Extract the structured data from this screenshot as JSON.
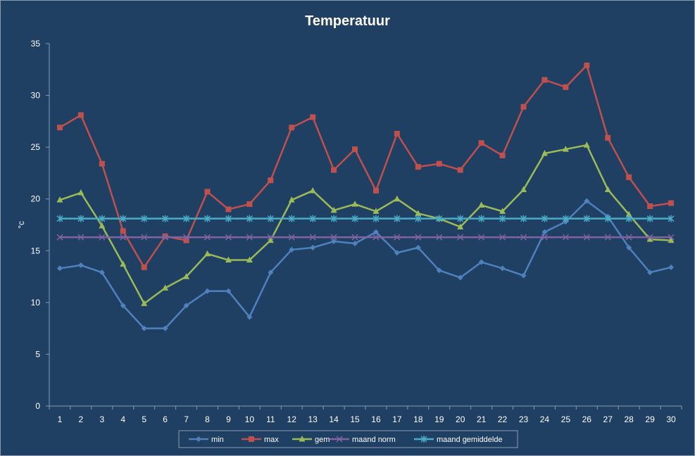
{
  "chart_data": {
    "type": "line",
    "title": "Temperatuur",
    "xlabel": "",
    "ylabel": "°c",
    "ylim": [
      0,
      35
    ],
    "yticks": [
      0,
      5,
      10,
      15,
      20,
      25,
      30,
      35
    ],
    "categories": [
      "1",
      "2",
      "3",
      "4",
      "5",
      "6",
      "7",
      "8",
      "9",
      "10",
      "11",
      "12",
      "13",
      "14",
      "15",
      "16",
      "17",
      "18",
      "19",
      "20",
      "21",
      "22",
      "23",
      "24",
      "25",
      "26",
      "27",
      "28",
      "29",
      "30"
    ],
    "grid": false,
    "legend_position": "bottom",
    "series": [
      {
        "name": "min",
        "color": "#4f81bd",
        "marker": "diamond",
        "values": [
          13.3,
          13.6,
          12.9,
          9.7,
          7.5,
          7.5,
          9.7,
          11.1,
          11.1,
          8.6,
          12.9,
          15.1,
          15.3,
          15.9,
          15.7,
          16.8,
          14.8,
          15.3,
          13.1,
          12.4,
          13.9,
          13.3,
          12.6,
          16.8,
          17.8,
          19.8,
          18.3,
          15.3,
          12.9,
          13.4
        ]
      },
      {
        "name": "max",
        "color": "#c0504d",
        "marker": "square",
        "values": [
          26.9,
          28.1,
          23.4,
          16.9,
          13.4,
          16.4,
          16.0,
          20.7,
          19.0,
          19.5,
          21.8,
          26.9,
          27.9,
          22.8,
          24.8,
          20.8,
          26.3,
          23.1,
          23.4,
          22.8,
          25.4,
          24.2,
          28.9,
          31.5,
          30.8,
          32.9,
          25.9,
          22.1,
          19.3,
          19.6
        ]
      },
      {
        "name": "gem",
        "color": "#9bbb59",
        "marker": "triangle",
        "values": [
          19.9,
          20.6,
          17.4,
          13.7,
          9.9,
          11.4,
          12.5,
          14.7,
          14.1,
          14.1,
          16.0,
          19.9,
          20.8,
          18.9,
          19.5,
          18.8,
          20.0,
          18.6,
          18.1,
          17.3,
          19.4,
          18.8,
          20.9,
          24.4,
          24.8,
          25.2,
          20.9,
          18.5,
          16.1,
          16.0
        ]
      },
      {
        "name": "maand norm",
        "color": "#8064a2",
        "marker": "x",
        "values": [
          16.3,
          16.3,
          16.3,
          16.3,
          16.3,
          16.3,
          16.3,
          16.3,
          16.3,
          16.3,
          16.3,
          16.3,
          16.3,
          16.3,
          16.3,
          16.3,
          16.3,
          16.3,
          16.3,
          16.3,
          16.3,
          16.3,
          16.3,
          16.3,
          16.3,
          16.3,
          16.3,
          16.3,
          16.3,
          16.3
        ]
      },
      {
        "name": "maand gemiddelde",
        "color": "#4bacc6",
        "marker": "star",
        "values": [
          18.1,
          18.1,
          18.1,
          18.1,
          18.1,
          18.1,
          18.1,
          18.1,
          18.1,
          18.1,
          18.1,
          18.1,
          18.1,
          18.1,
          18.1,
          18.1,
          18.1,
          18.1,
          18.1,
          18.1,
          18.1,
          18.1,
          18.1,
          18.1,
          18.1,
          18.1,
          18.1,
          18.1,
          18.1,
          18.1
        ]
      }
    ]
  }
}
